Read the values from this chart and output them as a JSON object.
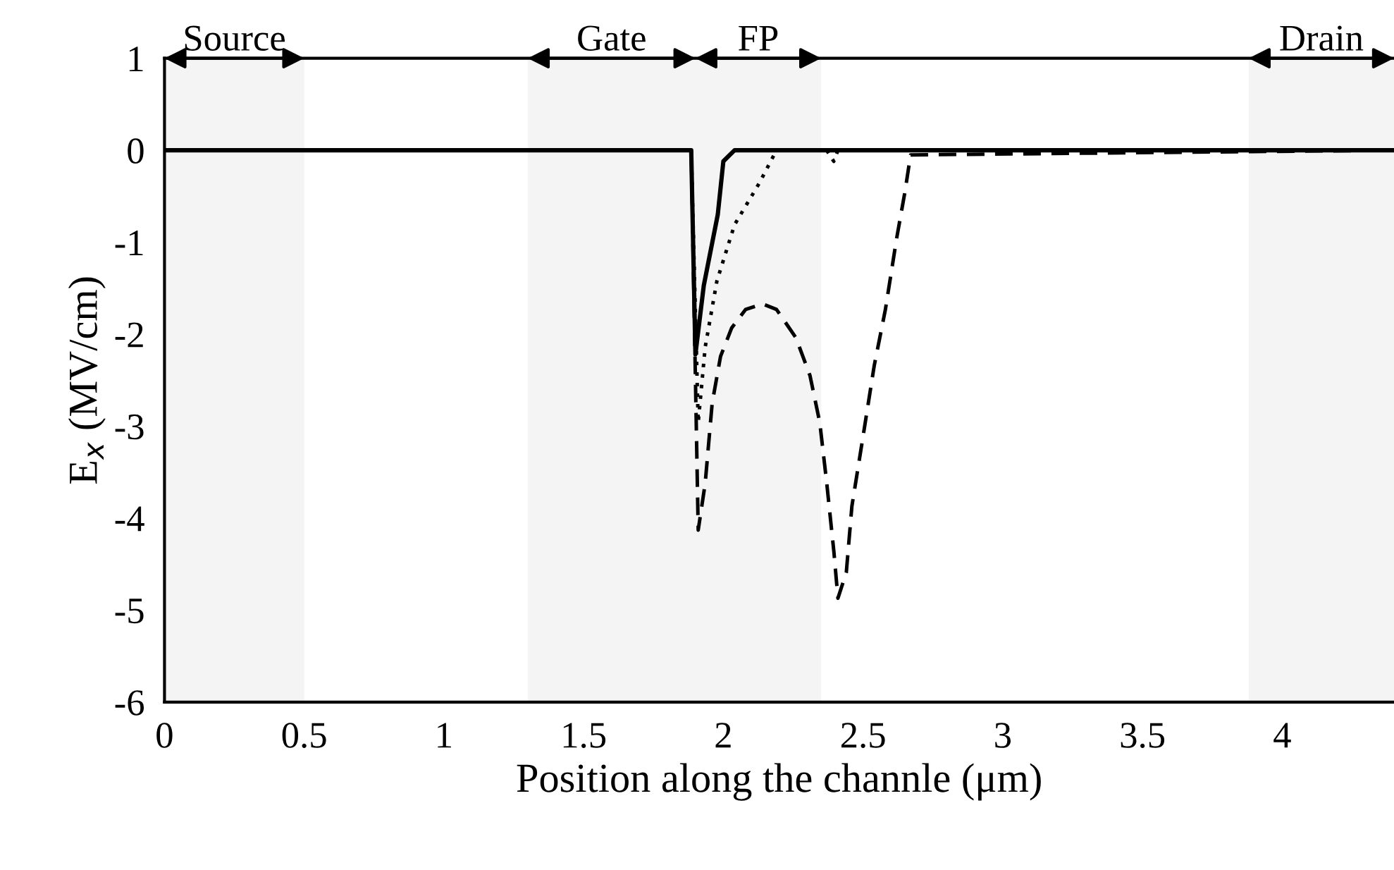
{
  "chart_data": {
    "type": "line",
    "xlabel": "Position along the channle (μm)",
    "ylabel": "E$_{x}$ (MV/cm)",
    "xlim": [
      0,
      4.4
    ],
    "ylim": [
      -6,
      1
    ],
    "xticks": [
      0,
      0.5,
      1,
      1.5,
      2,
      2.5,
      3,
      3.5,
      4
    ],
    "yticks": [
      -6,
      -5,
      -4,
      -3,
      -2,
      -1,
      0,
      1
    ],
    "grid": false,
    "legend": false,
    "marker": "none",
    "bands": [
      {
        "axis": "x",
        "from": 0,
        "to": 0.5,
        "label": "Source"
      },
      {
        "axis": "x",
        "from": 1.3,
        "to": 1.9,
        "label": "Gate"
      },
      {
        "axis": "x",
        "from": 1.9,
        "to": 2.35,
        "label": "FP"
      },
      {
        "axis": "x",
        "from": 3.88,
        "to": 4.4,
        "label": "Drain"
      }
    ],
    "series": [
      {
        "color": "#000000",
        "line_style": "dashed",
        "x": [
          0,
          1.885,
          1.91,
          1.935,
          1.96,
          1.99,
          2.03,
          2.08,
          2.14,
          2.19,
          2.26,
          2.31,
          2.345,
          2.37,
          2.396,
          2.41,
          2.44,
          2.46,
          2.5,
          2.54,
          2.58,
          2.62,
          2.65,
          2.67,
          4.4
        ],
        "values": [
          0,
          0,
          -4.13,
          -3.62,
          -2.75,
          -2.24,
          -1.93,
          -1.73,
          -1.67,
          -1.73,
          -2.04,
          -2.45,
          -2.96,
          -3.62,
          -4.38,
          -4.87,
          -4.59,
          -3.87,
          -3.11,
          -2.34,
          -1.73,
          -0.96,
          -0.45,
          -0.05,
          0
        ]
      },
      {
        "color": "#000000",
        "line_style": "dotted",
        "x": [
          1.885,
          1.91,
          1.935,
          1.977,
          2.04,
          2.13,
          2.19,
          2.3,
          2.37,
          2.395,
          2.41
        ],
        "values": [
          0,
          -2.96,
          -2.14,
          -1.42,
          -0.81,
          -0.35,
          0,
          null,
          0,
          -0.12,
          0
        ]
      },
      {
        "color": "#000000",
        "line_style": "solid",
        "x": [
          0,
          1.885,
          1.9,
          1.93,
          1.98,
          2.0,
          2.04,
          4.4
        ],
        "values": [
          0,
          0,
          -2.22,
          -1.47,
          -0.7,
          -0.12,
          0,
          0
        ]
      }
    ]
  }
}
